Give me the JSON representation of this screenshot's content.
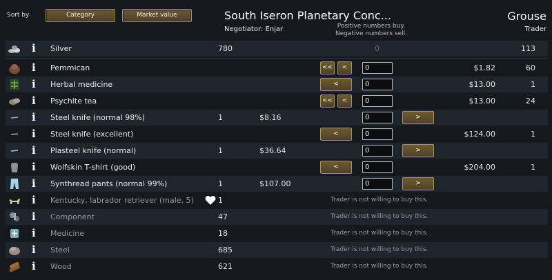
{
  "header": {
    "sort_by_label": "Sort by",
    "sort_buttons": [
      "Category",
      "Market value"
    ],
    "title": "South Iseron Planetary Conc...",
    "negotiator": "Negotiator: Enjar",
    "hint_line1": "Positive numbers buy.",
    "hint_line2": "Negative numbers sell.",
    "trader_name": "Grouse",
    "trader_role": "Trader"
  },
  "silver": {
    "name": "Silver",
    "colony_count": "780",
    "center": "0",
    "trader_count": "113"
  },
  "rows": [
    {
      "name": "Pemmican",
      "colony_count": "",
      "colony_price": "",
      "left_buttons": [
        "<<",
        "<"
      ],
      "qty": "0",
      "right_button": "",
      "trader_price": "$1.82",
      "trader_count": "60"
    },
    {
      "name": "Herbal medicine",
      "colony_count": "",
      "colony_price": "",
      "left_buttons": [
        "<"
      ],
      "qty": "0",
      "right_button": "",
      "trader_price": "$13.00",
      "trader_count": "1"
    },
    {
      "name": "Psychite tea",
      "colony_count": "",
      "colony_price": "",
      "left_buttons": [
        "<<",
        "<"
      ],
      "qty": "0",
      "right_button": "",
      "trader_price": "$13.00",
      "trader_count": "24"
    },
    {
      "name": "Steel knife (normal 98%)",
      "colony_count": "1",
      "colony_price": "$8.16",
      "left_buttons": [],
      "qty": "0",
      "right_button": ">",
      "trader_price": "",
      "trader_count": ""
    },
    {
      "name": "Steel knife (excellent)",
      "colony_count": "",
      "colony_price": "",
      "left_buttons": [
        "<"
      ],
      "qty": "0",
      "right_button": "",
      "trader_price": "$124.00",
      "trader_count": "1"
    },
    {
      "name": "Plasteel knife (normal)",
      "colony_count": "1",
      "colony_price": "$36.64",
      "left_buttons": [],
      "qty": "0",
      "right_button": ">",
      "trader_price": "",
      "trader_count": ""
    },
    {
      "name": "Wolfskin T-shirt (good)",
      "colony_count": "",
      "colony_price": "",
      "left_buttons": [
        "<"
      ],
      "qty": "0",
      "right_button": "",
      "trader_price": "$204.00",
      "trader_count": "1"
    },
    {
      "name": "Synthread pants (normal 99%)",
      "colony_count": "1",
      "colony_price": "$107.00",
      "left_buttons": [],
      "qty": "0",
      "right_button": ">",
      "trader_price": "",
      "trader_count": ""
    }
  ],
  "unwilling_rows": [
    {
      "name": "Kentucky, labrador retriever (male, 5)",
      "colony_count": "1",
      "note": "Trader is not willing to buy this.",
      "heart": true
    },
    {
      "name": "Component",
      "colony_count": "47",
      "note": "Trader is not willing to buy this."
    },
    {
      "name": "Medicine",
      "colony_count": "18",
      "note": "Trader is not willing to buy this."
    },
    {
      "name": "Steel",
      "colony_count": "685",
      "note": "Trader is not willing to buy this."
    },
    {
      "name": "Wood",
      "colony_count": "621",
      "note": "Trader is not willing to buy this."
    }
  ],
  "icons": [
    "silver-icon",
    "pemmican-icon",
    "herbal-medicine-icon",
    "psychite-tea-icon",
    "knife-icon",
    "knife-icon",
    "knife-icon",
    "tshirt-icon",
    "pants-icon",
    "dog-icon",
    "component-icon",
    "medicine-icon",
    "steel-icon",
    "wood-icon"
  ]
}
